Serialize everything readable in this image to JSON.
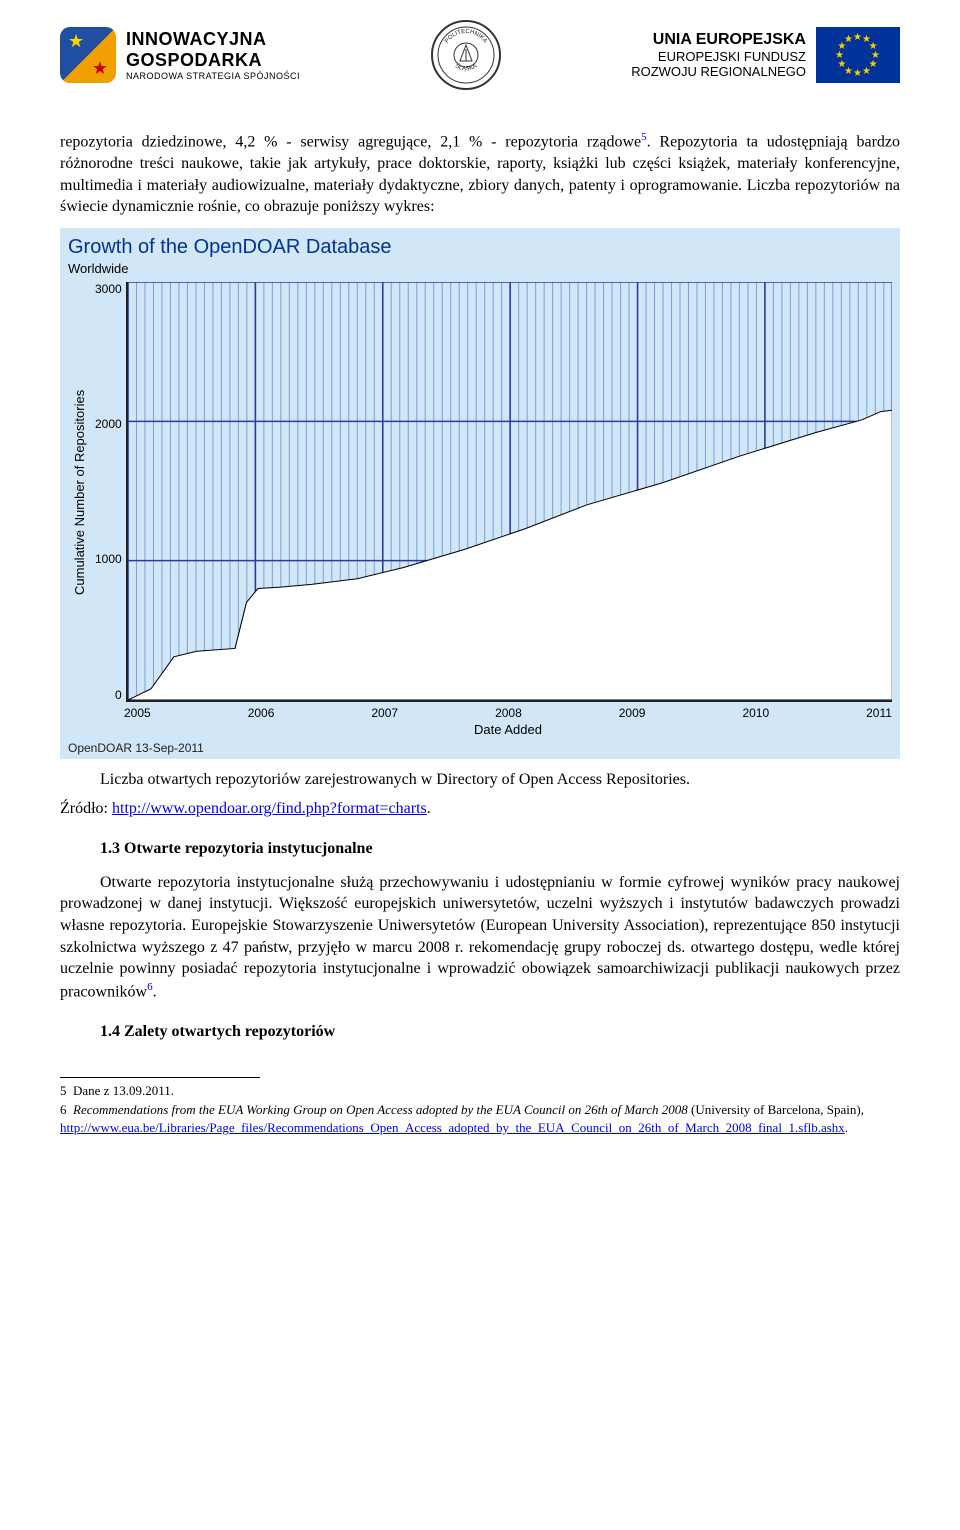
{
  "header": {
    "ig": {
      "l1": "INNOWACYJNA",
      "l2": "GOSPODARKA",
      "l3": "NARODOWA STRATEGIA SPÓJNOŚCI"
    },
    "seal_text_top": "POLITECHNIKA",
    "seal_text_bottom": "ŚLĄSKA",
    "eu": {
      "l1": "UNIA EUROPEJSKA",
      "l2": "EUROPEJSKI FUNDUSZ",
      "l3": "ROZWOJU REGIONALNEGO"
    }
  },
  "intro_para": "repozytoria dziedzinowe, 4,2 % - serwisy agregujące, 2,1 % - repozytoria rządowe",
  "intro_sup": "5",
  "intro_cont": ". Repozytoria ta udostępniają bardzo różnorodne treści naukowe, takie jak artykuły, prace doktorskie, raporty, książki lub części książek, materiały konferencyjne, multimedia i materiały audiowizualne, materiały dydaktyczne, zbiory danych, patenty i oprogramowanie. Liczba repozytoriów na świecie dynamicznie rośnie, co obrazuje poniższy wykres:",
  "chart": {
    "type": "area",
    "title": "Growth of the OpenDOAR Database",
    "subtitle": "Worldwide",
    "ylabel": "Cumulative Number of Repositories",
    "xlabel": "Date Added",
    "footer": "OpenDOAR 13-Sep-2011",
    "background_color": "#d1e6f7",
    "grid_color": "#2a3aa0",
    "area_fill": "#ffffff",
    "area_stroke": "#000000",
    "hatch_color": "#7aa6d8",
    "title_color": "#003399",
    "ylim": [
      0,
      3000
    ],
    "yticks": [
      0,
      1000,
      2000,
      3000
    ],
    "xticks": [
      "2005",
      "2006",
      "2007",
      "2008",
      "2009",
      "2010",
      "2011"
    ],
    "series": [
      {
        "x": 0.0,
        "y": 0
      },
      {
        "x": 0.03,
        "y": 80
      },
      {
        "x": 0.06,
        "y": 310
      },
      {
        "x": 0.09,
        "y": 350
      },
      {
        "x": 0.14,
        "y": 370
      },
      {
        "x": 0.155,
        "y": 700
      },
      {
        "x": 0.17,
        "y": 800
      },
      {
        "x": 0.2,
        "y": 810
      },
      {
        "x": 0.24,
        "y": 830
      },
      {
        "x": 0.3,
        "y": 870
      },
      {
        "x": 0.36,
        "y": 950
      },
      {
        "x": 0.44,
        "y": 1080
      },
      {
        "x": 0.52,
        "y": 1230
      },
      {
        "x": 0.6,
        "y": 1400
      },
      {
        "x": 0.7,
        "y": 1560
      },
      {
        "x": 0.8,
        "y": 1750
      },
      {
        "x": 0.9,
        "y": 1920
      },
      {
        "x": 0.96,
        "y": 2010
      },
      {
        "x": 0.985,
        "y": 2070
      },
      {
        "x": 1.0,
        "y": 2080
      }
    ]
  },
  "caption": {
    "line1a": "Liczba   otwartych repozytoriów zarejestrowanych w   Directory of Open Access Repositories.",
    "src_label": "Źródło: ",
    "src_url": "http://www.opendoar.org/find.php?format=charts",
    "src_period": "."
  },
  "section13_title": "1.3 Otwarte repozytoria instytucjonalne",
  "section13_body_a": "Otwarte repozytoria instytucjonalne służą przechowywaniu i udostępnianiu w formie cyfrowej wyników pracy naukowej prowadzonej w danej instytucji. Większość europejskich uniwersytetów, uczelni wyższych i instytutów badawczych prowadzi własne repozytoria. Europejskie Stowarzyszenie Uniwersytetów (European University Association), reprezentujące 850 instytucji szkolnictwa wyższego z 47 państw, przyjęło w marcu 2008 r. rekomendację grupy roboczej ds. otwartego dostępu, wedle której uczelnie powinny posiadać repozytoria instytucjonalne i wprowadzić obowiązek samoarchiwizacji publikacji naukowych przez pracowników",
  "section13_sup": "6",
  "section13_body_b": ".",
  "section14_title": "1.4 Zalety otwartych repozytoriów",
  "footnotes": {
    "f5": {
      "num": "5",
      "text": "Dane z 13.09.2011."
    },
    "f6": {
      "num": "6",
      "italic": "Recommendations from the EUA Working Group on Open Access adopted by the EUA Council on 26th of March 2008",
      "rest": " (University of Barcelona, Spain),",
      "url": "http://www.eua.be/Libraries/Page_files/Recommendations_Open_Access_adopted_by_the_EUA_Council_on_26th_of_March_2008_final_1.sflb.ashx",
      "period": "."
    }
  }
}
